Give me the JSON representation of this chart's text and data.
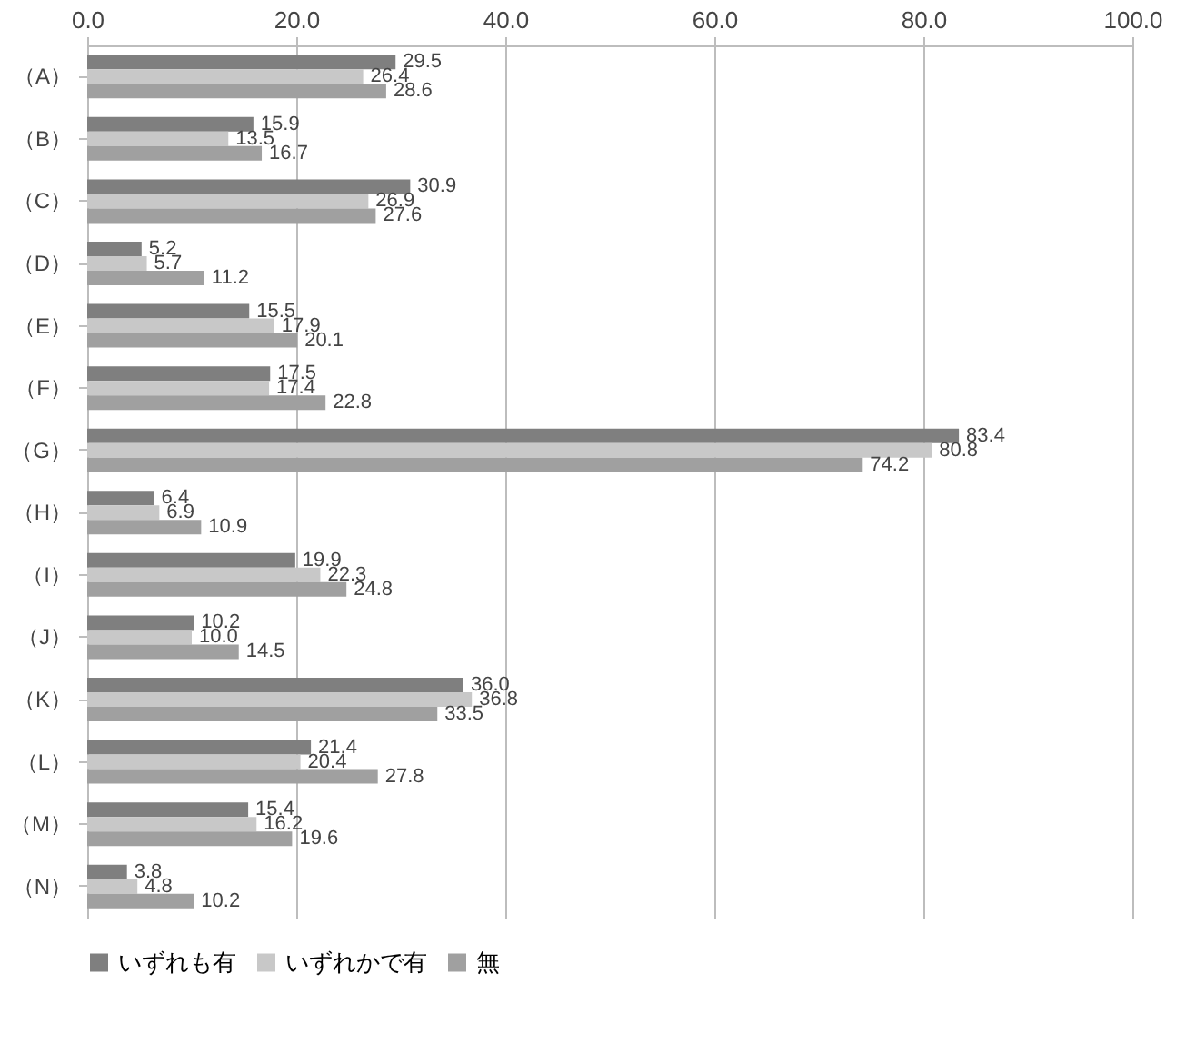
{
  "chart_data": {
    "type": "bar",
    "orientation": "horizontal",
    "categories": [
      "（A）",
      "（B）",
      "（C）",
      "（D）",
      "（E）",
      "（F）",
      "（G）",
      "（H）",
      "（I）",
      "（J）",
      "（K）",
      "（L）",
      "（M）",
      "（N）"
    ],
    "series": [
      {
        "name": "いずれも有",
        "color": "#7f7f7f",
        "values": [
          29.5,
          15.9,
          30.9,
          5.2,
          15.5,
          17.5,
          83.4,
          6.4,
          19.9,
          10.2,
          36.0,
          21.4,
          15.4,
          3.8
        ]
      },
      {
        "name": "いずれかで有",
        "color": "#c8c8c8",
        "values": [
          26.4,
          13.5,
          26.9,
          5.7,
          17.9,
          17.4,
          80.8,
          6.9,
          22.3,
          10.0,
          36.8,
          20.4,
          16.2,
          4.8
        ]
      },
      {
        "name": "無",
        "color": "#a0a0a0",
        "values": [
          28.6,
          16.7,
          27.6,
          11.2,
          20.1,
          22.8,
          74.2,
          10.9,
          24.8,
          14.5,
          33.5,
          27.8,
          19.6,
          10.2
        ]
      }
    ],
    "xlim": [
      0,
      100
    ],
    "xticks": [
      {
        "value": 0,
        "label": "0.0"
      },
      {
        "value": 20,
        "label": "20.0"
      },
      {
        "value": 40,
        "label": "40.0"
      },
      {
        "value": 60,
        "label": "60.0"
      },
      {
        "value": 80,
        "label": "80.0"
      },
      {
        "value": 100,
        "label": "100.0"
      }
    ],
    "value_labels": [
      [
        "29.5",
        "15.9",
        "30.9",
        "5.2",
        "15.5",
        "17.5",
        "83.4",
        "6.4",
        "19.9",
        "10.2",
        "36.0",
        "21.4",
        "15.4",
        "3.8"
      ],
      [
        "26.4",
        "13.5",
        "26.9",
        "5.7",
        "17.9",
        "17.4",
        "80.8",
        "6.9",
        "22.3",
        "10.0",
        "36.8",
        "20.4",
        "16.2",
        "4.8"
      ],
      [
        "28.6",
        "16.7",
        "27.6",
        "11.2",
        "20.1",
        "22.8",
        "74.2",
        "10.9",
        "24.8",
        "14.5",
        "33.5",
        "27.8",
        "19.6",
        "10.2"
      ]
    ],
    "grid": "x",
    "legend": "bottom"
  }
}
